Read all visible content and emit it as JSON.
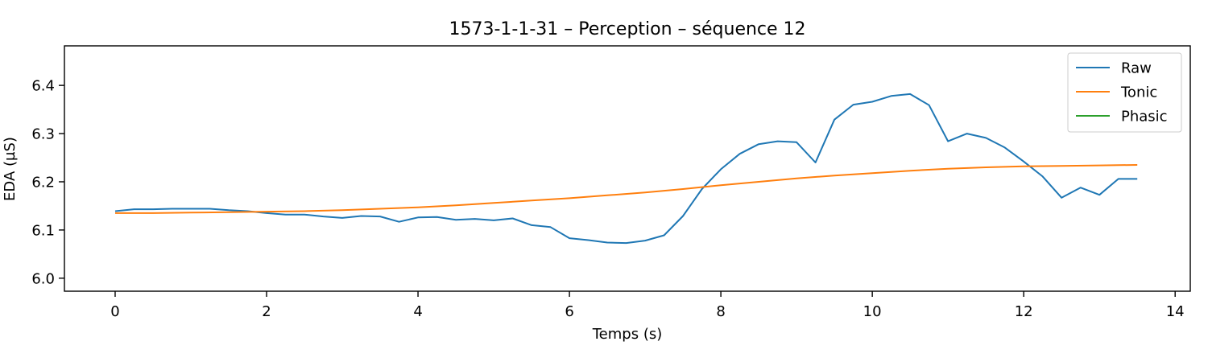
{
  "chart_data": {
    "type": "line",
    "title": "1573-1-1-31 – Perception – séquence 12",
    "xlabel": "Temps (s)",
    "ylabel": "EDA (µS)",
    "xlim": [
      -0.67,
      14.2
    ],
    "ylim": [
      5.973,
      6.482
    ],
    "x_ticks": [
      0,
      2,
      4,
      6,
      8,
      10,
      12,
      14
    ],
    "x_tick_labels": [
      "0",
      "2",
      "4",
      "6",
      "8",
      "10",
      "12",
      "14"
    ],
    "y_ticks": [
      6.0,
      6.1,
      6.2,
      6.3,
      6.4
    ],
    "y_tick_labels": [
      "6.0",
      "6.1",
      "6.2",
      "6.3",
      "6.4"
    ],
    "grid": false,
    "legend_position": "upper right",
    "series": [
      {
        "name": "Raw",
        "color": "#1f77b4",
        "x": [
          0.0,
          0.25,
          0.5,
          0.75,
          1.0,
          1.25,
          1.5,
          1.75,
          2.0,
          2.25,
          2.5,
          2.75,
          3.0,
          3.25,
          3.5,
          3.75,
          4.0,
          4.25,
          4.5,
          4.75,
          5.0,
          5.25,
          5.5,
          5.75,
          6.0,
          6.25,
          6.5,
          6.75,
          7.0,
          7.25,
          7.5,
          7.75,
          8.0,
          8.25,
          8.5,
          8.75,
          9.0,
          9.25,
          9.5,
          9.75,
          10.0,
          10.25,
          10.5,
          10.75,
          11.0,
          11.25,
          11.5,
          11.75,
          12.0,
          12.25,
          12.5,
          12.75,
          13.0,
          13.25,
          13.5
        ],
        "values": [
          6.139,
          6.143,
          6.143,
          6.144,
          6.144,
          6.144,
          6.141,
          6.139,
          6.135,
          6.132,
          6.132,
          6.128,
          6.125,
          6.129,
          6.128,
          6.117,
          6.126,
          6.127,
          6.121,
          6.123,
          6.12,
          6.124,
          6.11,
          6.106,
          6.083,
          6.079,
          6.074,
          6.073,
          6.078,
          6.089,
          6.129,
          6.185,
          6.226,
          6.258,
          6.278,
          6.284,
          6.282,
          6.24,
          6.329,
          6.36,
          6.366,
          6.378,
          6.382,
          6.359,
          6.284,
          6.3,
          6.291,
          6.271,
          6.242,
          6.211,
          6.167,
          6.188,
          6.173,
          6.206,
          6.206
        ]
      },
      {
        "name": "Tonic",
        "color": "#ff7f0e",
        "x": [
          0.0,
          0.5,
          1.0,
          1.5,
          2.0,
          2.5,
          3.0,
          3.5,
          4.0,
          4.5,
          5.0,
          5.5,
          6.0,
          6.5,
          7.0,
          7.5,
          8.0,
          8.5,
          9.0,
          9.5,
          10.0,
          10.5,
          11.0,
          11.5,
          12.0,
          12.5,
          13.0,
          13.5
        ],
        "values": [
          6.135,
          6.135,
          6.136,
          6.137,
          6.138,
          6.139,
          6.141,
          6.144,
          6.147,
          6.151,
          6.156,
          6.161,
          6.166,
          6.172,
          6.178,
          6.185,
          6.193,
          6.2,
          6.207,
          6.213,
          6.218,
          6.223,
          6.227,
          6.23,
          6.232,
          6.233,
          6.234,
          6.235
        ]
      },
      {
        "name": "Phasic",
        "color": "#2ca02c",
        "x": [],
        "values": []
      }
    ]
  }
}
